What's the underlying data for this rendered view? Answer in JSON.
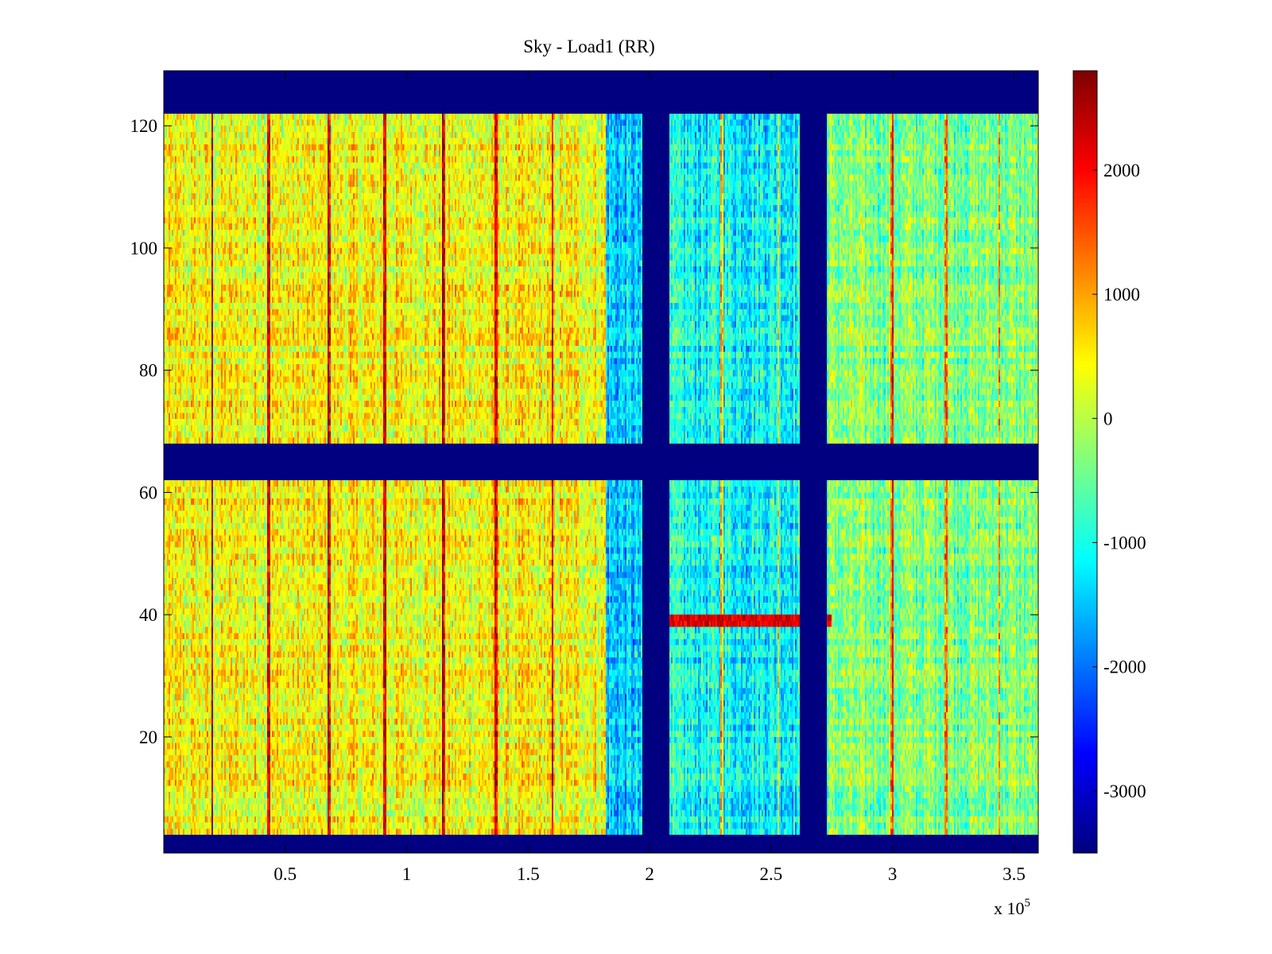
{
  "chart_data": {
    "type": "heatmap",
    "title": "Sky - Load1 (RR)",
    "xlabel": "",
    "ylabel": "",
    "x_multiplier_label": {
      "base": "x 10",
      "exponent": "5"
    },
    "xlim": [
      0,
      3.6
    ],
    "ylim": [
      1,
      129
    ],
    "x_ticks": [
      0.5,
      1,
      1.5,
      2,
      2.5,
      3,
      3.5
    ],
    "x_tick_labels": [
      "0.5",
      "1",
      "1.5",
      "2",
      "2.5",
      "3",
      "3.5"
    ],
    "y_ticks": [
      20,
      40,
      60,
      80,
      100,
      120
    ],
    "y_tick_labels": [
      "20",
      "40",
      "60",
      "80",
      "100",
      "120"
    ],
    "colormap": "jet",
    "color_range": [
      -3500,
      2800
    ],
    "colorbar_ticks": [
      2000,
      1000,
      0,
      -1000,
      -2000,
      -3000
    ],
    "colorbar_tick_labels": [
      "2000",
      "1000",
      "0",
      "-1000",
      "-2000",
      "-3000"
    ],
    "masked_value": -3500,
    "masked_row_bands": [
      [
        1,
        4
      ],
      [
        62,
        68
      ],
      [
        122,
        129
      ]
    ],
    "masked_column_bands": [
      [
        1.97,
        2.08
      ],
      [
        2.62,
        2.73
      ]
    ],
    "regions": [
      {
        "x_range": [
          0,
          1.82
        ],
        "base_level": 400,
        "note": "yellow/orange"
      },
      {
        "x_range": [
          1.82,
          1.97
        ],
        "base_level": -1500,
        "note": "cyan/blue"
      },
      {
        "x_range": [
          2.08,
          2.62
        ],
        "base_level": -1100,
        "note": "cyan/blue"
      },
      {
        "x_range": [
          2.73,
          3.6
        ],
        "base_level": -350,
        "note": "green/yellow"
      }
    ],
    "hot_columns_x": [
      0.2,
      0.43,
      0.68,
      0.91,
      1.15,
      1.37,
      1.6,
      2.3,
      2.53,
      3.0,
      3.22,
      3.44
    ],
    "hot_row": {
      "y": 39,
      "x_range": [
        1.97,
        2.75
      ],
      "level": 2200
    }
  }
}
